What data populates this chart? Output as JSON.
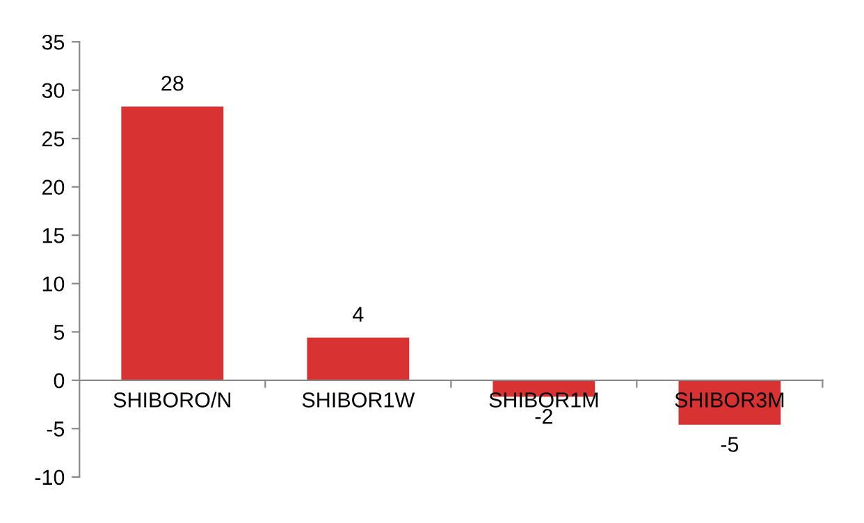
{
  "chart_data": {
    "type": "bar",
    "categories": [
      "SHIBORO/N",
      "SHIBOR1W",
      "SHIBOR1M",
      "SHIBOR3M"
    ],
    "values": [
      28.3,
      4.4,
      -1.7,
      -4.6
    ],
    "value_labels": [
      "28",
      "4",
      "-2",
      "-5"
    ],
    "color": "#d83232",
    "ylim": [
      -10,
      35
    ],
    "yticks": [
      -10,
      -5,
      0,
      5,
      10,
      15,
      20,
      25,
      30,
      35
    ],
    "grid": false,
    "legend": false
  }
}
